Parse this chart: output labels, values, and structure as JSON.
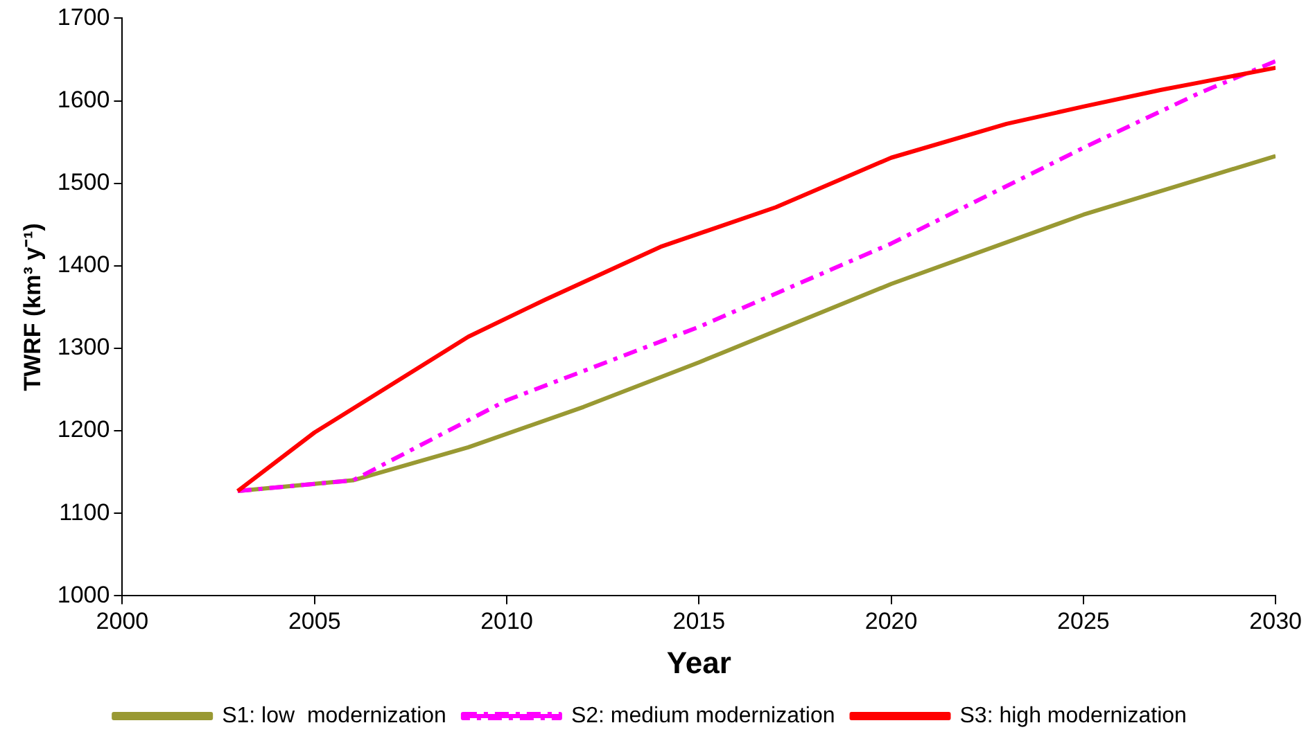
{
  "chart_data": {
    "type": "line",
    "xlabel": "Year",
    "ylabel": "TWRF (km³ y⁻¹)",
    "xlim": [
      2000,
      2030
    ],
    "xticks": [
      2000,
      2005,
      2010,
      2015,
      2020,
      2025,
      2030
    ],
    "ylim": [
      1000,
      1700
    ],
    "yticks": [
      1000,
      1100,
      1200,
      1300,
      1400,
      1500,
      1600,
      1700
    ],
    "grid": false,
    "legend": "bottom",
    "marker": "none",
    "series": [
      {
        "name": "S1: low  modernization",
        "color": "#999933",
        "line_style": "solid",
        "x": [
          2003,
          2006,
          2009,
          2012,
          2015,
          2020,
          2025,
          2030
        ],
        "values": [
          1127,
          1140,
          1180,
          1229,
          1283,
          1378,
          1462,
          1533
        ]
      },
      {
        "name": "S2: medium modernization",
        "color": "#ff00ff",
        "line_style": "dashed",
        "x": [
          2003,
          2006,
          2010,
          2015,
          2020,
          2025,
          2028,
          2030
        ],
        "values": [
          1127,
          1140,
          1237,
          1326,
          1427,
          1543,
          1609,
          1648
        ]
      },
      {
        "name": "S3: high modernization",
        "color": "#ff0000",
        "line_style": "solid",
        "x": [
          2003,
          2005,
          2009,
          2011,
          2014,
          2017,
          2020,
          2023,
          2025,
          2027,
          2028,
          2030
        ],
        "values": [
          1127,
          1198,
          1314,
          1359,
          1423,
          1471,
          1531,
          1572,
          1593,
          1613,
          1622,
          1640
        ]
      }
    ]
  }
}
